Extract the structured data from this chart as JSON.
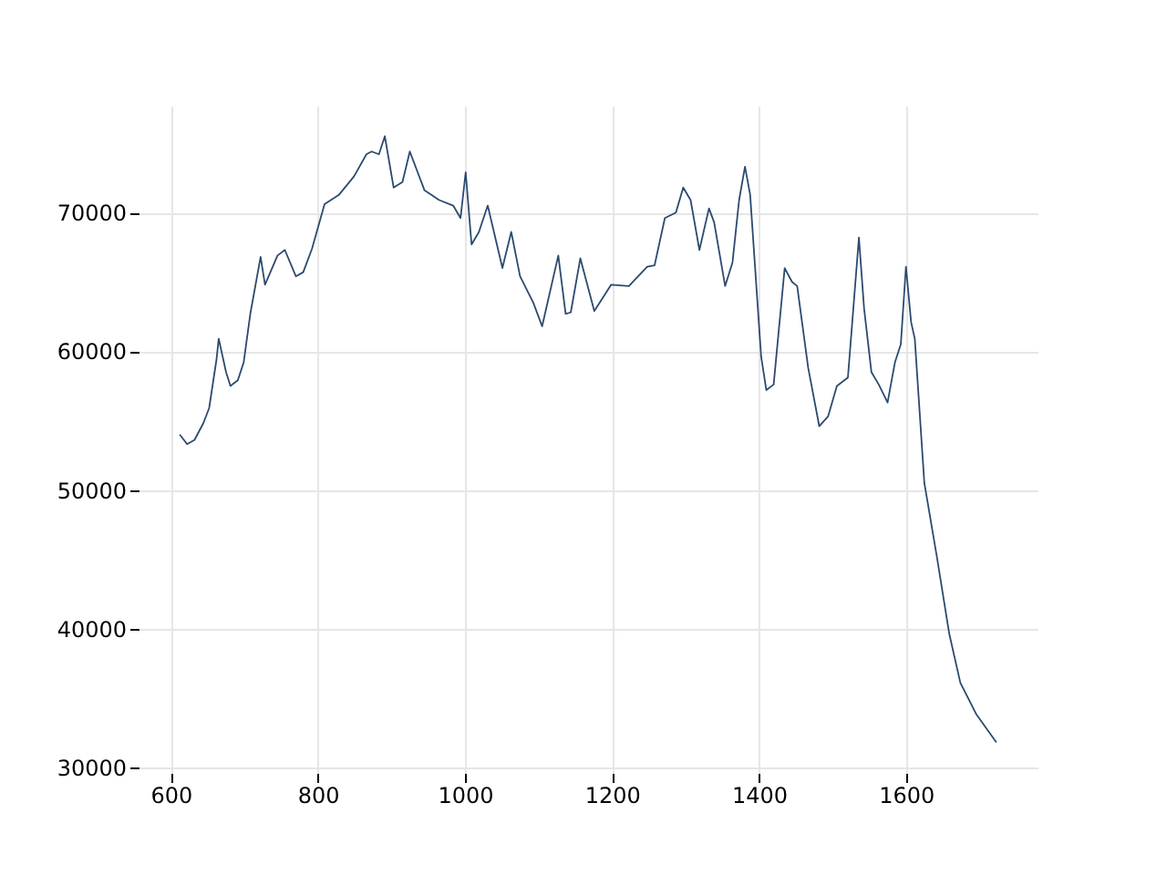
{
  "chart_data": {
    "type": "line",
    "xlim": [
      556,
      1779
    ],
    "ylim": [
      29600,
      77700
    ],
    "xticks": [
      600,
      800,
      1000,
      1200,
      1400,
      1600
    ],
    "yticks": [
      30000,
      40000,
      50000,
      60000,
      70000
    ],
    "grid": true,
    "marker": "none",
    "line_style": "solid",
    "series": [
      {
        "color": "#2c4a6e",
        "x": [
          612,
          622,
          632,
          644,
          652,
          662,
          665,
          675,
          681,
          691,
          699,
          708,
          722,
          728,
          745,
          755,
          770,
          780,
          792,
          809,
          829,
          849,
          866,
          873,
          883,
          891,
          903,
          915,
          925,
          945,
          965,
          984,
          994,
          1001,
          1009,
          1019,
          1031,
          1051,
          1063,
          1075,
          1093,
          1105,
          1127,
          1137,
          1144,
          1157,
          1176,
          1199,
          1223,
          1248,
          1258,
          1272,
          1287,
          1297,
          1307,
          1319,
          1332,
          1339,
          1354,
          1364,
          1373,
          1381,
          1388,
          1403,
          1410,
          1420,
          1435,
          1445,
          1452,
          1467,
          1482,
          1494,
          1506,
          1521,
          1536,
          1543,
          1553,
          1563,
          1575,
          1585,
          1593,
          1600,
          1607,
          1612,
          1625,
          1642,
          1659,
          1674,
          1696,
          1723
        ],
        "values": [
          54000,
          53300,
          53600,
          54800,
          55900,
          59400,
          60900,
          58500,
          57500,
          57900,
          59200,
          62700,
          66800,
          64800,
          66900,
          67300,
          65400,
          65700,
          67400,
          70600,
          71300,
          72600,
          74200,
          74400,
          74200,
          75500,
          71800,
          72200,
          74400,
          71600,
          70900,
          70500,
          69600,
          72900,
          67700,
          68600,
          70500,
          66000,
          68600,
          65400,
          63500,
          61800,
          66900,
          62700,
          62800,
          66700,
          62900,
          64800,
          64700,
          66100,
          66200,
          69600,
          70000,
          71800,
          70900,
          67300,
          70300,
          69300,
          64700,
          66400,
          70900,
          73300,
          71300,
          59600,
          57200,
          57600,
          66000,
          65000,
          64700,
          58800,
          54600,
          55300,
          57500,
          58100,
          68200,
          63100,
          58500,
          57600,
          56300,
          59200,
          60500,
          66100,
          62100,
          60900,
          50500,
          45200,
          39600,
          36100,
          33800,
          31800
        ]
      }
    ]
  }
}
